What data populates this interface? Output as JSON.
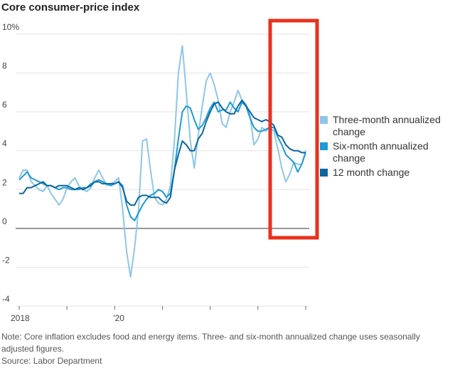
{
  "chart_data": {
    "type": "line",
    "title": "Core consumer-price index",
    "note": "Note: Core inflation excludes food and energy items. Three- and six-month annualized change uses seasonally adjusted figures.",
    "source": "Source: Labor Department",
    "categories": [
      "2018",
      null,
      null,
      null,
      null,
      null,
      null,
      null,
      null,
      null,
      null,
      null,
      null,
      null,
      null,
      null,
      null,
      null,
      null,
      null,
      null,
      null,
      null,
      null,
      "'20",
      null,
      null,
      null,
      null,
      null,
      null,
      null,
      null,
      null,
      null,
      null,
      null,
      null,
      null,
      null,
      null,
      null,
      null,
      null,
      null,
      null,
      null,
      null,
      null,
      null,
      null,
      null,
      null,
      null,
      null,
      null,
      null,
      null,
      null,
      null,
      null,
      null,
      null,
      null,
      null,
      null,
      null,
      null,
      null,
      null,
      null,
      null,
      null
    ],
    "series": [
      {
        "name": "Three-month annualized change",
        "color": "#8ec6ea",
        "values": [
          2.6,
          3.0,
          3.0,
          2.4,
          2.2,
          2.0,
          1.9,
          2.2,
          1.8,
          1.5,
          1.2,
          1.5,
          2.1,
          2.4,
          2.6,
          2.2,
          2.0,
          1.9,
          2.1,
          2.6,
          3.0,
          2.6,
          2.2,
          2.3,
          2.4,
          2.6,
          1.0,
          -1.2,
          -2.5,
          -1.0,
          1.0,
          4.5,
          4.6,
          3.0,
          1.6,
          1.3,
          1.2,
          1.5,
          2.2,
          4.5,
          8.0,
          9.4,
          7.0,
          4.5,
          3.1,
          4.8,
          6.3,
          7.6,
          8.0,
          7.4,
          6.6,
          5.4,
          5.2,
          6.0,
          6.5,
          7.1,
          6.6,
          6.4,
          5.8,
          4.3,
          4.6,
          5.2,
          5.0,
          5.2,
          5.0,
          4.1,
          3.1,
          2.4,
          2.8,
          3.4,
          3.3,
          3.3,
          4.0
        ]
      },
      {
        "name": "Six-month annualized change",
        "color": "#1e9ad6",
        "values": [
          2.5,
          2.7,
          2.9,
          2.6,
          2.5,
          2.4,
          2.3,
          2.2,
          2.2,
          2.1,
          2.0,
          2.1,
          2.1,
          2.0,
          2.0,
          2.0,
          2.1,
          2.1,
          2.3,
          2.4,
          2.5,
          2.4,
          2.3,
          2.2,
          2.3,
          2.4,
          2.2,
          1.2,
          0.6,
          0.4,
          0.8,
          1.2,
          1.5,
          1.7,
          1.8,
          2.0,
          1.9,
          1.6,
          1.8,
          3.0,
          4.6,
          6.0,
          6.3,
          6.2,
          5.6,
          5.1,
          5.3,
          5.7,
          6.2,
          6.5,
          6.0,
          6.1,
          6.1,
          6.5,
          6.2,
          6.0,
          6.5,
          6.3,
          5.7,
          5.2,
          5.0,
          5.0,
          5.1,
          5.2,
          5.2,
          4.7,
          4.3,
          3.8,
          3.6,
          3.4,
          2.9,
          3.3,
          3.9
        ]
      },
      {
        "name": "12 month change",
        "color": "#0b679e",
        "values": [
          1.8,
          1.8,
          2.1,
          2.1,
          2.2,
          2.3,
          2.4,
          2.2,
          2.2,
          2.1,
          2.2,
          2.2,
          2.2,
          2.1,
          2.0,
          2.1,
          2.0,
          2.1,
          2.2,
          2.4,
          2.4,
          2.3,
          2.3,
          2.3,
          2.3,
          2.4,
          2.1,
          1.4,
          1.2,
          1.2,
          1.6,
          1.7,
          1.7,
          1.6,
          1.6,
          1.6,
          1.4,
          1.3,
          1.6,
          3.0,
          3.8,
          4.5,
          4.3,
          4.0,
          4.0,
          4.6,
          4.9,
          5.5,
          6.0,
          6.4,
          6.5,
          6.2,
          6.0,
          5.9,
          5.9,
          6.3,
          6.6,
          6.3,
          6.0,
          5.7,
          5.6,
          5.5,
          5.6,
          5.5,
          5.3,
          4.8,
          4.7,
          4.3,
          4.1,
          4.0,
          4.0,
          3.9,
          3.9
        ]
      }
    ],
    "ylim": [
      -4,
      10
    ],
    "yticks": [
      {
        "value": 10,
        "label": "10%"
      },
      8,
      6,
      4,
      2,
      0,
      -2,
      -4
    ],
    "grid": true
  }
}
